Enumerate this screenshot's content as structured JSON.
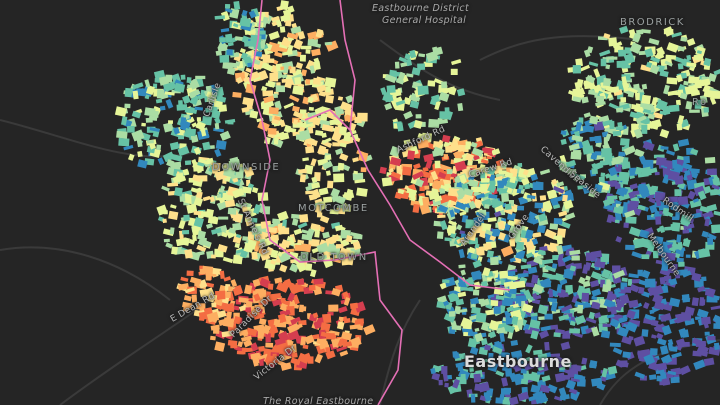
{
  "labels": {
    "hospital_line1": "Eastbourne District",
    "hospital_line2": "General Hospital",
    "brodrick": "BRODRICK",
    "downside": "DOWNSIDE",
    "motcombe": "MOTCOMBE",
    "old_town": "OLD TOWN",
    "e_dean_rd": "E Dean Rd",
    "paradise_dr": "Paradise Dr",
    "carlisle": "Carlisle",
    "eastbourne": "Eastbourne",
    "royal_eastbourne": "The Royal Eastbourne",
    "cavendish": "Cavendish",
    "carew": "Carew Rd",
    "arundel": "Arundel",
    "grove": "Grove",
    "victoria_dr": "Victoria Dr",
    "st_annes": "St Anne's Rd",
    "melbourne": "Melbourne",
    "rodmill": "Rodmill",
    "seaside": "Seaside",
    "ashford": "Ashford Rd",
    "ra": "Ro"
  },
  "colors": {
    "background": "#252525",
    "road": "#3a3a3a",
    "boundary": "#e46fb5",
    "palette": [
      "#9e0142",
      "#d53e4f",
      "#f46d43",
      "#fdae61",
      "#fee08b",
      "#e6f598",
      "#abdda4",
      "#66c2a5",
      "#3288bd",
      "#5e4fa2"
    ]
  }
}
